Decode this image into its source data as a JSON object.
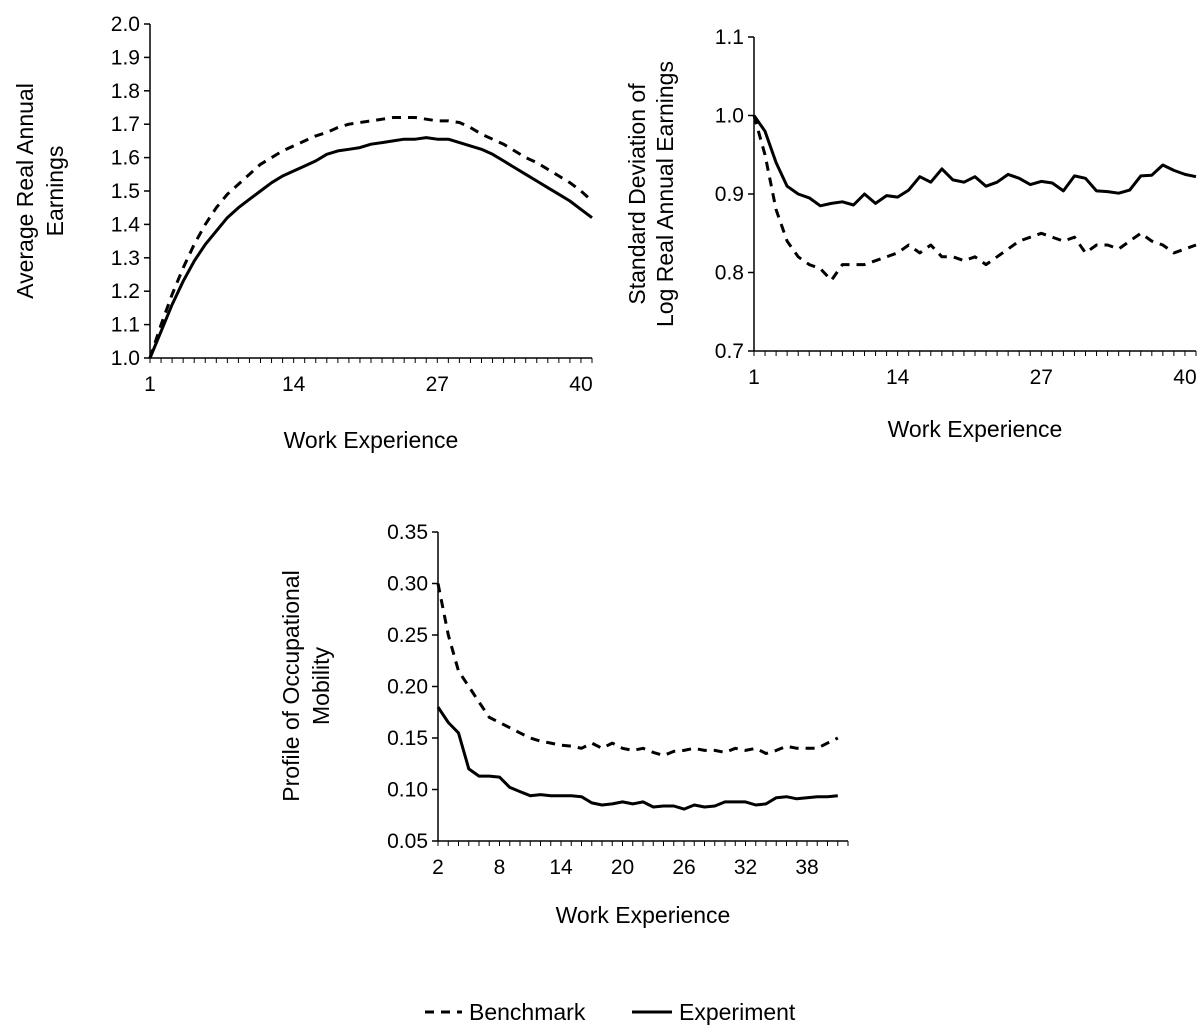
{
  "chart_data": [
    {
      "type": "line",
      "id": "earnings",
      "title": "",
      "xlabel": "Work Experience",
      "ylabel": [
        "Average Real Annual",
        "Earnings"
      ],
      "xlim": [
        1,
        41
      ],
      "ylim": [
        1.0,
        2.0
      ],
      "xticks": [
        1,
        14,
        27,
        40
      ],
      "yticks": [
        1.0,
        1.1,
        1.2,
        1.3,
        1.4,
        1.5,
        1.6,
        1.7,
        1.8,
        1.9,
        2.0
      ],
      "ytick_labels": [
        "1.0",
        "1.1",
        "1.2",
        "1.3",
        "1.4",
        "1.5",
        "1.6",
        "1.7",
        "1.8",
        "1.9",
        "2.0"
      ],
      "x": [
        1,
        2,
        3,
        4,
        5,
        6,
        7,
        8,
        9,
        10,
        11,
        12,
        13,
        14,
        15,
        16,
        17,
        18,
        19,
        20,
        21,
        22,
        23,
        24,
        25,
        26,
        27,
        28,
        29,
        30,
        31,
        32,
        33,
        34,
        35,
        36,
        37,
        38,
        39,
        40,
        41
      ],
      "series": [
        {
          "name": "Benchmark",
          "style": "dashed",
          "values": [
            1.0,
            1.1,
            1.19,
            1.27,
            1.34,
            1.4,
            1.45,
            1.49,
            1.52,
            1.55,
            1.58,
            1.6,
            1.62,
            1.635,
            1.65,
            1.665,
            1.675,
            1.69,
            1.7,
            1.705,
            1.71,
            1.715,
            1.72,
            1.72,
            1.72,
            1.715,
            1.71,
            1.71,
            1.705,
            1.69,
            1.67,
            1.655,
            1.64,
            1.62,
            1.6,
            1.585,
            1.565,
            1.545,
            1.525,
            1.5,
            1.47
          ]
        },
        {
          "name": "Experiment",
          "style": "solid",
          "values": [
            1.0,
            1.08,
            1.16,
            1.23,
            1.29,
            1.34,
            1.38,
            1.42,
            1.45,
            1.475,
            1.5,
            1.525,
            1.545,
            1.56,
            1.575,
            1.59,
            1.61,
            1.62,
            1.625,
            1.63,
            1.64,
            1.645,
            1.65,
            1.655,
            1.655,
            1.66,
            1.655,
            1.655,
            1.645,
            1.635,
            1.625,
            1.61,
            1.59,
            1.57,
            1.55,
            1.53,
            1.51,
            1.49,
            1.47,
            1.445,
            1.42
          ]
        }
      ]
    },
    {
      "type": "line",
      "id": "std-dev",
      "title": "",
      "xlabel": "Work Experience",
      "ylabel": [
        "Standard Deviation of",
        "Log Real Annual Earnings"
      ],
      "xlim": [
        1,
        41
      ],
      "ylim": [
        0.7,
        1.1
      ],
      "xticks": [
        1,
        14,
        27,
        40
      ],
      "yticks": [
        0.7,
        0.8,
        0.9,
        1.0,
        1.1
      ],
      "ytick_labels": [
        "0.7",
        "0.8",
        "0.9",
        "1.0",
        "1.1"
      ],
      "x": [
        1,
        2,
        3,
        4,
        5,
        6,
        7,
        8,
        9,
        10,
        11,
        12,
        13,
        14,
        15,
        16,
        17,
        18,
        19,
        20,
        21,
        22,
        23,
        24,
        25,
        26,
        27,
        28,
        29,
        30,
        31,
        32,
        33,
        34,
        35,
        36,
        37,
        38,
        39,
        40,
        41
      ],
      "series": [
        {
          "name": "Benchmark",
          "style": "dashed",
          "values": [
            1.0,
            0.95,
            0.88,
            0.84,
            0.82,
            0.81,
            0.805,
            0.79,
            0.81,
            0.81,
            0.81,
            0.815,
            0.82,
            0.825,
            0.835,
            0.825,
            0.835,
            0.82,
            0.82,
            0.815,
            0.82,
            0.81,
            0.82,
            0.83,
            0.84,
            0.845,
            0.85,
            0.845,
            0.84,
            0.845,
            0.825,
            0.835,
            0.835,
            0.83,
            0.84,
            0.85,
            0.84,
            0.835,
            0.825,
            0.83,
            0.835
          ]
        },
        {
          "name": "Experiment",
          "style": "solid",
          "values": [
            1.0,
            0.98,
            0.94,
            0.91,
            0.9,
            0.895,
            0.885,
            0.888,
            0.89,
            0.886,
            0.9,
            0.888,
            0.898,
            0.896,
            0.905,
            0.922,
            0.915,
            0.932,
            0.918,
            0.915,
            0.922,
            0.91,
            0.915,
            0.925,
            0.92,
            0.912,
            0.916,
            0.914,
            0.904,
            0.923,
            0.92,
            0.904,
            0.903,
            0.901,
            0.905,
            0.923,
            0.924,
            0.937,
            0.93,
            0.925,
            0.922
          ]
        }
      ]
    },
    {
      "type": "line",
      "id": "mobility",
      "title": "",
      "xlabel": "Work Experience",
      "ylabel": [
        "Profile of Occupational",
        "Mobility"
      ],
      "xlim": [
        2,
        42
      ],
      "ylim": [
        0.05,
        0.35
      ],
      "xticks": [
        2,
        8,
        14,
        20,
        26,
        32,
        38
      ],
      "yticks": [
        0.05,
        0.1,
        0.15,
        0.2,
        0.25,
        0.3,
        0.35
      ],
      "ytick_labels": [
        "0.05",
        "0.10",
        "0.15",
        "0.20",
        "0.25",
        "0.30",
        "0.35"
      ],
      "x": [
        2,
        3,
        4,
        5,
        6,
        7,
        8,
        9,
        10,
        11,
        12,
        13,
        14,
        15,
        16,
        17,
        18,
        19,
        20,
        21,
        22,
        23,
        24,
        25,
        26,
        27,
        28,
        29,
        30,
        31,
        32,
        33,
        34,
        35,
        36,
        37,
        38,
        39,
        40,
        41
      ],
      "series": [
        {
          "name": "Benchmark",
          "style": "dashed",
          "values": [
            0.3,
            0.25,
            0.215,
            0.2,
            0.185,
            0.17,
            0.165,
            0.16,
            0.155,
            0.15,
            0.147,
            0.145,
            0.143,
            0.142,
            0.14,
            0.145,
            0.14,
            0.145,
            0.14,
            0.138,
            0.14,
            0.136,
            0.133,
            0.137,
            0.138,
            0.14,
            0.138,
            0.138,
            0.136,
            0.14,
            0.138,
            0.14,
            0.135,
            0.138,
            0.142,
            0.14,
            0.14,
            0.14,
            0.145,
            0.15
          ]
        },
        {
          "name": "Experiment",
          "style": "solid",
          "values": [
            0.18,
            0.165,
            0.155,
            0.12,
            0.113,
            0.113,
            0.112,
            0.102,
            0.098,
            0.094,
            0.095,
            0.094,
            0.094,
            0.094,
            0.093,
            0.087,
            0.085,
            0.086,
            0.088,
            0.086,
            0.088,
            0.083,
            0.084,
            0.084,
            0.081,
            0.085,
            0.083,
            0.084,
            0.088,
            0.088,
            0.088,
            0.085,
            0.086,
            0.092,
            0.093,
            0.091,
            0.092,
            0.093,
            0.093,
            0.094
          ]
        }
      ]
    }
  ],
  "legend": {
    "position": "bottom",
    "items": [
      {
        "label": "Benchmark",
        "style": "dashed"
      },
      {
        "label": "Experiment",
        "style": "solid"
      }
    ]
  }
}
